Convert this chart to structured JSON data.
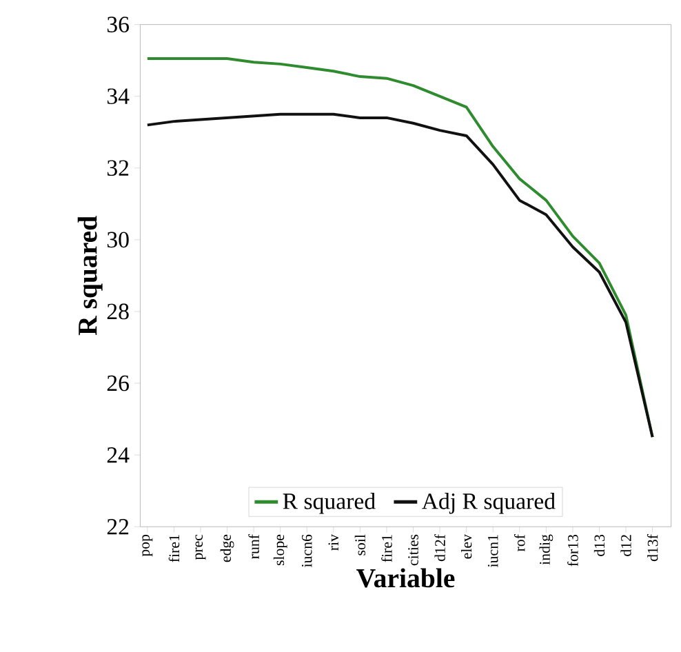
{
  "chart_data": {
    "type": "line",
    "xlabel": "Variable",
    "ylabel": "R squared",
    "categories": [
      "pop",
      "fire1",
      "prec",
      "edge",
      "runf",
      "slope",
      "iucn6",
      "riv",
      "soil",
      "fire1",
      "cities",
      "d12f",
      "elev",
      "iucn1",
      "rof",
      "indig",
      "for13",
      "d13",
      "d12",
      "d13f"
    ],
    "series": [
      {
        "name": "R squared",
        "color": "#2e8b2e",
        "values": [
          35.05,
          35.05,
          35.05,
          35.05,
          34.95,
          34.9,
          34.8,
          34.7,
          34.55,
          34.5,
          34.3,
          34.0,
          33.7,
          32.6,
          31.7,
          31.1,
          30.1,
          29.35,
          27.9,
          24.5
        ]
      },
      {
        "name": "Adj R squared",
        "color": "#111111",
        "values": [
          33.2,
          33.3,
          33.35,
          33.4,
          33.45,
          33.5,
          33.5,
          33.5,
          33.4,
          33.4,
          33.25,
          33.05,
          32.9,
          32.1,
          31.1,
          30.7,
          29.8,
          29.1,
          27.7,
          24.5
        ]
      }
    ],
    "ylim": [
      22,
      36
    ],
    "yticks": [
      22,
      24,
      26,
      28,
      30,
      32,
      34,
      36
    ],
    "grid": false,
    "legend": "bottom",
    "marker": "none",
    "line_style": "solid"
  }
}
